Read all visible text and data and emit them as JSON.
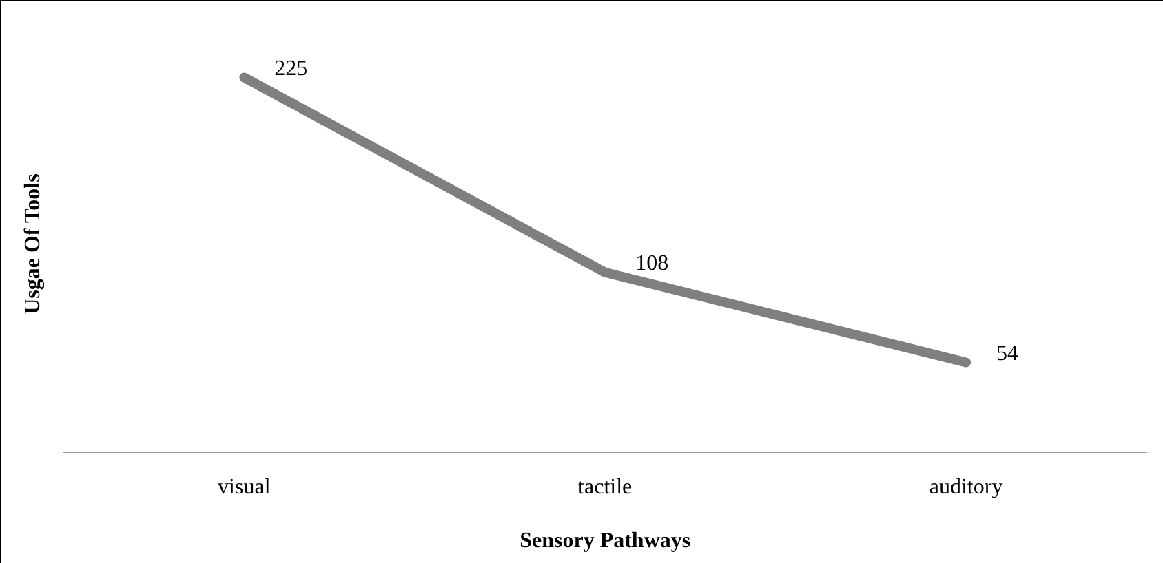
{
  "chart_data": {
    "type": "line",
    "xlabel": "Sensory Pathways",
    "ylabel": "Usgae Of Tools",
    "categories": [
      "visual",
      "tactile",
      "auditory"
    ],
    "series": [
      {
        "color": "#7f7f7f",
        "values": [
          225,
          108,
          54
        ]
      }
    ],
    "data_labels": true,
    "grid": false,
    "legend": false,
    "marker": "none",
    "line_style": "solid"
  }
}
